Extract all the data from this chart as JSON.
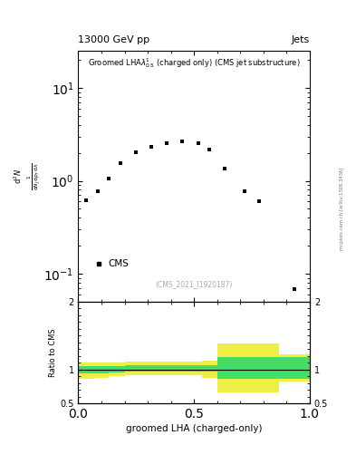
{
  "title_top": "13000 GeV pp",
  "title_right": "Jets",
  "plot_title": "Groomed LHA$\\lambda^{1}_{0.5}$ (charged only) (CMS jet substructure)",
  "xlabel": "groomed LHA (charged-only)",
  "ylabel_main_top": "mathrm d$^2$N",
  "ylabel_ratio": "Ratio to CMS",
  "cms_label": "CMS",
  "watermark": "(CMS_2021_I1920187)",
  "arxiv_label": "mcplots.cern.ch [arXiv:1306.3436]",
  "data_x": [
    0.033,
    0.083,
    0.133,
    0.183,
    0.25,
    0.317,
    0.383,
    0.45,
    0.517,
    0.567,
    0.633,
    0.717,
    0.783,
    0.933
  ],
  "data_y": [
    0.62,
    0.78,
    1.05,
    1.55,
    2.05,
    2.35,
    2.55,
    2.65,
    2.55,
    2.15,
    1.35,
    0.78,
    0.6,
    0.068
  ],
  "ratio_x_edges": [
    0.0,
    0.067,
    0.133,
    0.2,
    0.267,
    0.333,
    0.4,
    0.467,
    0.533,
    0.6,
    0.667,
    0.733,
    0.8,
    0.867,
    0.933,
    1.0
  ],
  "ratio_green_lo": [
    0.94,
    0.95,
    0.96,
    0.97,
    0.97,
    0.97,
    0.97,
    0.97,
    0.97,
    0.87,
    0.87,
    0.87,
    0.87,
    0.87,
    0.87
  ],
  "ratio_green_hi": [
    1.05,
    1.05,
    1.05,
    1.06,
    1.06,
    1.06,
    1.06,
    1.06,
    1.06,
    1.18,
    1.18,
    1.18,
    1.18,
    1.18,
    1.18
  ],
  "ratio_yellow_lo": [
    0.87,
    0.88,
    0.9,
    0.92,
    0.92,
    0.92,
    0.92,
    0.92,
    0.88,
    0.67,
    0.67,
    0.67,
    0.67,
    0.82,
    0.82
  ],
  "ratio_yellow_hi": [
    1.1,
    1.11,
    1.11,
    1.12,
    1.12,
    1.12,
    1.12,
    1.12,
    1.13,
    1.38,
    1.38,
    1.38,
    1.38,
    1.22,
    1.22
  ],
  "ylim_main": [
    0.05,
    25.0
  ],
  "ylim_ratio": [
    0.5,
    2.0
  ],
  "xlim": [
    0.0,
    1.0
  ],
  "background_color": "#ffffff",
  "data_color": "#000000",
  "green_color": "#44dd66",
  "yellow_color": "#eeee44"
}
